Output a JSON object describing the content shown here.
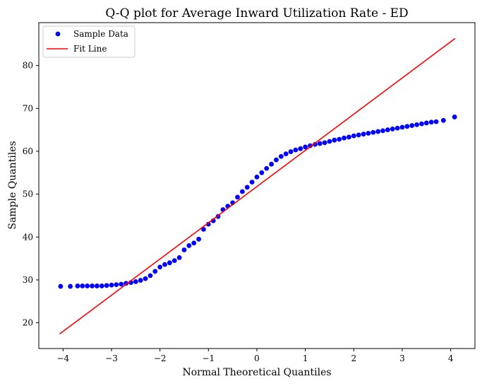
{
  "chart_data": {
    "type": "scatter",
    "title": "Q-Q plot for Average Inward Utilization Rate - ED",
    "xlabel": "Normal Theoretical Quantiles",
    "ylabel": "Sample Quantiles",
    "xlim": [
      -4.5,
      4.5
    ],
    "ylim": [
      14,
      90
    ],
    "xticks": [
      -4,
      -3,
      -2,
      -1,
      0,
      1,
      2,
      3,
      4
    ],
    "yticks": [
      20,
      30,
      40,
      50,
      60,
      70,
      80
    ],
    "grid": false,
    "legend": {
      "placement": "top-left",
      "entries": [
        "Sample Data",
        "Fit Line"
      ]
    },
    "series": [
      {
        "name": "Sample Data",
        "kind": "scatter",
        "color": "#0000ff",
        "x": [
          -4.05,
          -3.85,
          -3.7,
          -3.6,
          -3.5,
          -3.4,
          -3.3,
          -3.2,
          -3.1,
          -3.0,
          -2.9,
          -2.8,
          -2.7,
          -2.6,
          -2.5,
          -2.4,
          -2.3,
          -2.2,
          -2.1,
          -2.0,
          -1.9,
          -1.8,
          -1.7,
          -1.6,
          -1.5,
          -1.4,
          -1.3,
          -1.2,
          -1.1,
          -1.0,
          -0.9,
          -0.8,
          -0.7,
          -0.6,
          -0.5,
          -0.4,
          -0.3,
          -0.2,
          -0.1,
          0.0,
          0.1,
          0.2,
          0.3,
          0.4,
          0.5,
          0.6,
          0.7,
          0.8,
          0.9,
          1.0,
          1.1,
          1.2,
          1.3,
          1.4,
          1.5,
          1.6,
          1.7,
          1.8,
          1.9,
          2.0,
          2.1,
          2.2,
          2.3,
          2.4,
          2.5,
          2.6,
          2.7,
          2.8,
          2.9,
          3.0,
          3.1,
          3.2,
          3.3,
          3.4,
          3.5,
          3.6,
          3.7,
          3.85,
          4.08
        ],
        "y": [
          28.5,
          28.5,
          28.6,
          28.6,
          28.6,
          28.6,
          28.6,
          28.6,
          28.7,
          28.8,
          28.9,
          29.0,
          29.2,
          29.4,
          29.6,
          29.9,
          30.3,
          31.0,
          32.0,
          33.0,
          33.6,
          34.0,
          34.5,
          35.2,
          37.0,
          38.0,
          38.6,
          39.5,
          41.8,
          43.0,
          43.8,
          44.8,
          46.4,
          47.2,
          48.0,
          49.3,
          50.6,
          51.6,
          52.8,
          54.0,
          55.0,
          56.0,
          57.0,
          58.0,
          58.8,
          59.4,
          59.9,
          60.3,
          60.6,
          61.0,
          61.3,
          61.6,
          61.8,
          62.0,
          62.3,
          62.6,
          62.8,
          63.1,
          63.3,
          63.6,
          63.8,
          64.0,
          64.2,
          64.4,
          64.6,
          64.8,
          65.0,
          65.2,
          65.4,
          65.6,
          65.8,
          66.0,
          66.2,
          66.4,
          66.6,
          66.8,
          66.9,
          67.2,
          68.0
        ]
      },
      {
        "name": "Fit Line",
        "kind": "line",
        "color": "#ff0000",
        "x": [
          -4.07,
          4.09
        ],
        "y": [
          17.4,
          86.3
        ]
      }
    ]
  }
}
